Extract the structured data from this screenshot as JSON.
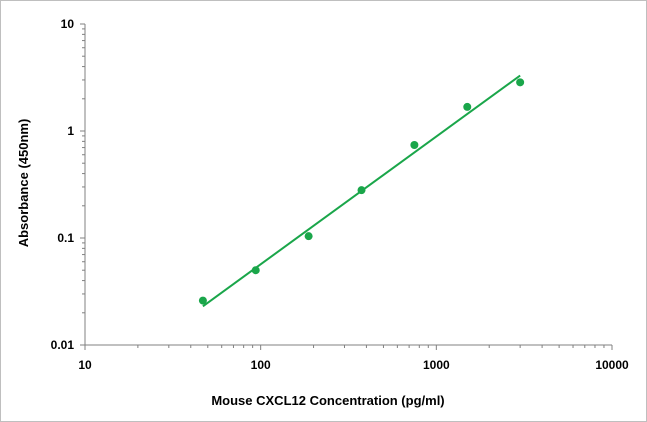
{
  "chart_data": {
    "type": "scatter",
    "title": "",
    "xlabel": "Mouse CXCL12 Concentration (pg/ml)",
    "ylabel": "Absorbance (450nm)",
    "x_scale": "log",
    "y_scale": "log",
    "xlim": [
      10,
      10000
    ],
    "ylim": [
      0.01,
      10
    ],
    "x_tick_labels": [
      "10",
      "100",
      "1000",
      "10000"
    ],
    "y_tick_labels": [
      "0.01",
      "0.1",
      "1",
      "10"
    ],
    "grid": false,
    "legend": "none",
    "series": [
      {
        "points": [
          {
            "x": 46.9,
            "y": 0.026
          },
          {
            "x": 93.75,
            "y": 0.05
          },
          {
            "x": 187.5,
            "y": 0.104
          },
          {
            "x": 375,
            "y": 0.28
          },
          {
            "x": 750,
            "y": 0.74
          },
          {
            "x": 1500,
            "y": 1.68
          },
          {
            "x": 3000,
            "y": 2.85
          }
        ],
        "color": "#1aa64a"
      }
    ],
    "fit_line": {
      "type": "power",
      "from": {
        "x": 46.9,
        "y": 0.023
      },
      "to": {
        "x": 3000,
        "y": 3.3
      },
      "color": "#1aa64a"
    }
  }
}
